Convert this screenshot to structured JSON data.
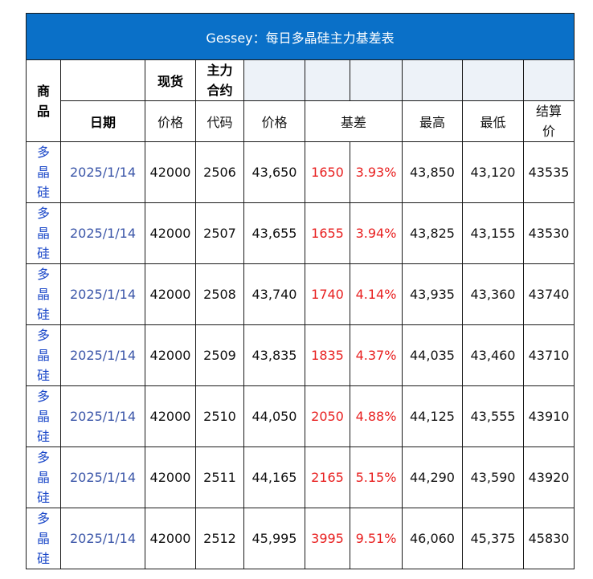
{
  "title": "Gessey：每日多晶硅主力基差表",
  "header": {
    "commodity": "商品",
    "spot": "现货",
    "main_contract": "主力合约",
    "date": "日期",
    "price": "价格",
    "code": "代码",
    "futures_price": "价格",
    "basis": "基差",
    "high": "最高",
    "low": "最低",
    "settlement": "结算价"
  },
  "rows": [
    {
      "commodity": "多晶硅",
      "date": "2025/1/14",
      "spot": "42000",
      "code": "2506",
      "price": "43,650",
      "basis": "1650",
      "basis_pct": "3.93%",
      "high": "43,850",
      "low": "43,120",
      "settle": "43535"
    },
    {
      "commodity": "多晶硅",
      "date": "2025/1/14",
      "spot": "42000",
      "code": "2507",
      "price": "43,655",
      "basis": "1655",
      "basis_pct": "3.94%",
      "high": "43,825",
      "low": "43,155",
      "settle": "43530"
    },
    {
      "commodity": "多晶硅",
      "date": "2025/1/14",
      "spot": "42000",
      "code": "2508",
      "price": "43,740",
      "basis": "1740",
      "basis_pct": "4.14%",
      "high": "43,935",
      "low": "43,360",
      "settle": "43740"
    },
    {
      "commodity": "多晶硅",
      "date": "2025/1/14",
      "spot": "42000",
      "code": "2509",
      "price": "43,835",
      "basis": "1835",
      "basis_pct": "4.37%",
      "high": "44,035",
      "low": "43,460",
      "settle": "43710"
    },
    {
      "commodity": "多晶硅",
      "date": "2025/1/14",
      "spot": "42000",
      "code": "2510",
      "price": "44,050",
      "basis": "2050",
      "basis_pct": "4.88%",
      "high": "44,125",
      "low": "43,555",
      "settle": "43910"
    },
    {
      "commodity": "多晶硅",
      "date": "2025/1/14",
      "spot": "42000",
      "code": "2511",
      "price": "44,165",
      "basis": "2165",
      "basis_pct": "5.15%",
      "high": "44,290",
      "low": "43,590",
      "settle": "43920"
    },
    {
      "commodity": "多晶硅",
      "date": "2025/1/14",
      "spot": "42000",
      "code": "2512",
      "price": "45,995",
      "basis": "3995",
      "basis_pct": "9.51%",
      "high": "46,060",
      "low": "45,375",
      "settle": "45830"
    }
  ],
  "colors": {
    "title_bg": "#0a70c8",
    "title_text": "#ffffff",
    "commodity_text": "#1a47c8",
    "date_text": "#3a55a8",
    "basis_text": "#e81f1f",
    "header_shade": "#edf2f8"
  }
}
